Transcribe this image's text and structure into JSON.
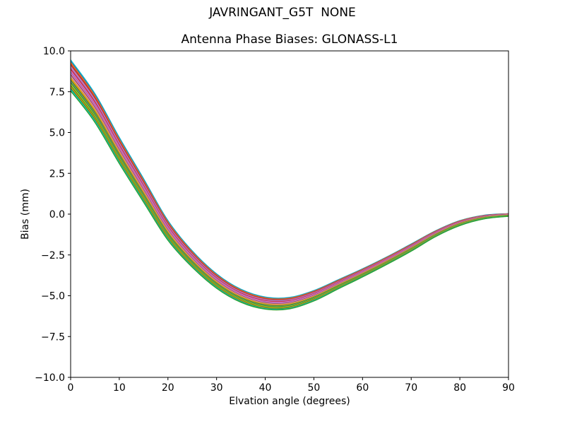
{
  "figure": {
    "suptitle": "JAVRINGANT_G5T  NONE",
    "background": "#ffffff",
    "text_color": "#000000",
    "axes_edge_color": "#000000"
  },
  "chart_data": {
    "type": "line",
    "title": "Antenna Phase Biases: GLONASS-L1",
    "xlabel": "Elvation angle (degrees)",
    "ylabel": "Bias (mm)",
    "xlim": [
      0,
      90
    ],
    "ylim": [
      -10,
      10
    ],
    "grid": false,
    "legend": "none",
    "xticks": {
      "values": [
        0,
        10,
        20,
        30,
        40,
        50,
        60,
        70,
        80,
        90
      ],
      "labels": [
        "0",
        "10",
        "20",
        "30",
        "40",
        "50",
        "60",
        "70",
        "80",
        "90"
      ]
    },
    "yticks": {
      "values": [
        10,
        7.5,
        5,
        2.5,
        0,
        -2.5,
        -5,
        -7.5,
        -10
      ],
      "labels": [
        "10.0",
        "7.5",
        "5.0",
        "2.5",
        "0.0",
        "−2.5",
        "−5.0",
        "−7.5",
        "−10.0"
      ]
    },
    "x": [
      0,
      5,
      10,
      15,
      20,
      25,
      30,
      35,
      40,
      45,
      50,
      55,
      60,
      65,
      70,
      75,
      80,
      85,
      90
    ],
    "center": [
      8.5,
      6.5,
      3.9,
      1.45,
      -1.0,
      -2.75,
      -4.1,
      -5.0,
      -5.45,
      -5.45,
      -5.0,
      -4.3,
      -3.6,
      -2.85,
      -2.05,
      -1.2,
      -0.55,
      -0.18,
      -0.05
    ],
    "halfwidth": [
      0.95,
      0.88,
      0.8,
      0.72,
      0.6,
      0.5,
      0.44,
      0.4,
      0.37,
      0.35,
      0.32,
      0.28,
      0.25,
      0.23,
      0.22,
      0.18,
      0.15,
      0.11,
      0.08
    ],
    "series_count": 24,
    "series_note": "Bundle of overlapping per-satellite bias curves; curve i = center + k_i * halfwidth with k_i evenly spaced from +1 (top) to -1 (bottom)",
    "series_colors": [
      "#17becf",
      "#1f77b4",
      "#ff7f0e",
      "#d62728",
      "#8c564b",
      "#e377c2",
      "#9467bd",
      "#d62728",
      "#e377c2",
      "#9467bd",
      "#e377c2",
      "#8c564b",
      "#e377c2",
      "#bcbd22",
      "#ff7f0e",
      "#2ca02c",
      "#7f7f7f",
      "#2ca02c",
      "#bcbd22",
      "#2ca02c",
      "#ff7f0e",
      "#2ca02c",
      "#17becf",
      "#2ca02c"
    ]
  }
}
